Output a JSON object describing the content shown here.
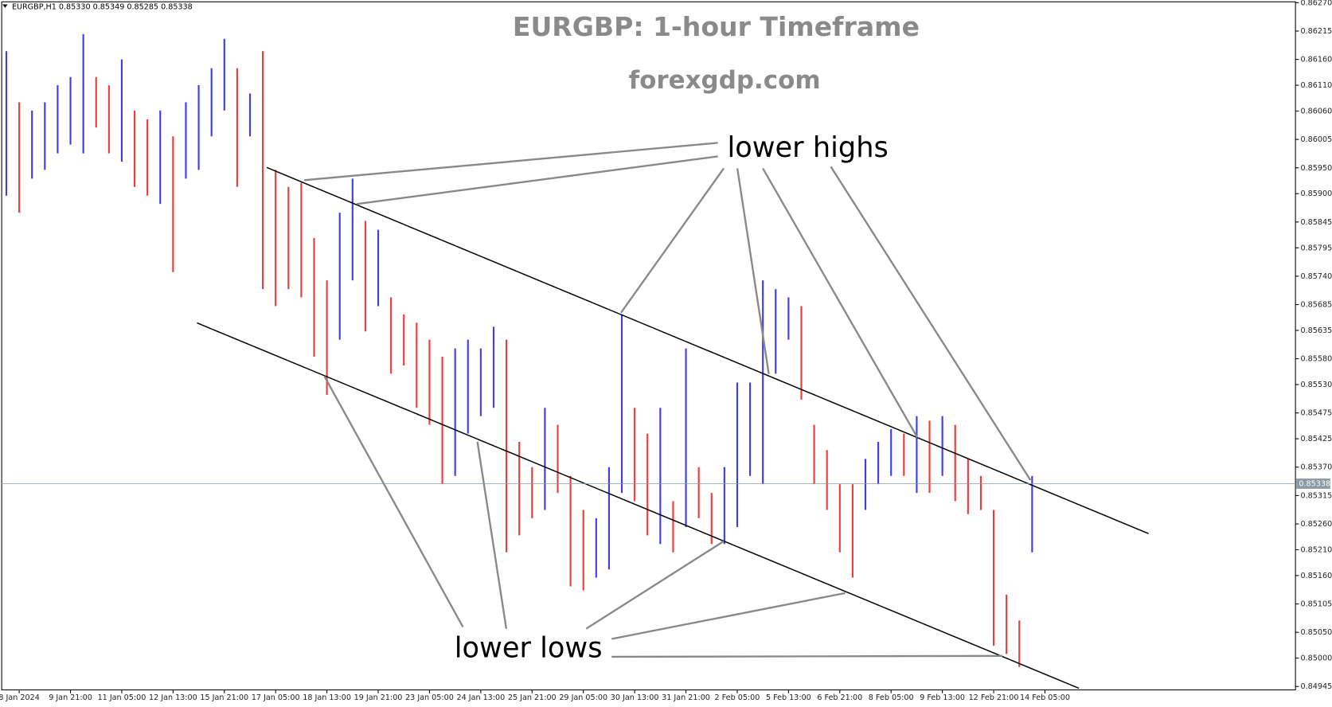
{
  "chart_data": {
    "type": "range_bar",
    "header": "EURGBP,H1  0.85330 0.85349 0.85285 0.85338",
    "title": "EURGBP: 1-hour Timeframe",
    "subtitle": "forexgdp.com",
    "annotations": [
      "lower highs",
      "lower lows"
    ],
    "up_color": "#3d3df0",
    "down_color": "#f03a3a",
    "xlim": [
      0,
      80
    ],
    "xticks": [
      {
        "value": 1,
        "label": "8 Jan 2024"
      },
      {
        "value": 5,
        "label": "9 Jan 21:00"
      },
      {
        "value": 9,
        "label": "11 Jan 05:00"
      },
      {
        "value": 13,
        "label": "12 Jan 13:00"
      },
      {
        "value": 17,
        "label": "15 Jan 21:00"
      },
      {
        "value": 21,
        "label": "17 Jan 05:00"
      },
      {
        "value": 25,
        "label": "18 Jan 13:00"
      },
      {
        "value": 29,
        "label": "19 Jan 21:00"
      },
      {
        "value": 33,
        "label": "23 Jan 05:00"
      },
      {
        "value": 37,
        "label": "24 Jan 13:00"
      },
      {
        "value": 41,
        "label": "25 Jan 21:00"
      },
      {
        "value": 45,
        "label": "29 Jan 05:00"
      },
      {
        "value": 49,
        "label": "30 Jan 13:00"
      },
      {
        "value": 53,
        "label": "31 Jan 21:00"
      },
      {
        "value": 57,
        "label": "2 Feb 05:00"
      },
      {
        "value": 61,
        "label": "5 Feb 13:00"
      },
      {
        "value": 65,
        "label": "6 Feb 21:00"
      },
      {
        "value": 69,
        "label": "8 Feb 05:00"
      },
      {
        "value": 73,
        "label": "9 Feb 13:00"
      },
      {
        "value": 77,
        "label": "12 Feb 21:00"
      },
      {
        "value": 81,
        "label": "14 Feb 05:00"
      }
    ],
    "ylim": [
      0.84945,
      0.8627
    ],
    "yticks": [
      {
        "value": 0.8627,
        "label": "0.86270"
      },
      {
        "value": 0.86215,
        "label": "0.86215"
      },
      {
        "value": 0.8616,
        "label": "0.86160"
      },
      {
        "value": 0.8611,
        "label": "0.86110"
      },
      {
        "value": 0.8606,
        "label": "0.86060"
      },
      {
        "value": 0.86005,
        "label": "0.86005"
      },
      {
        "value": 0.8595,
        "label": "0.85950"
      },
      {
        "value": 0.859,
        "label": "0.85900"
      },
      {
        "value": 0.85845,
        "label": "0.85845"
      },
      {
        "value": 0.85795,
        "label": "0.85795"
      },
      {
        "value": 0.8574,
        "label": "0.85740"
      },
      {
        "value": 0.85685,
        "label": "0.85685"
      },
      {
        "value": 0.85635,
        "label": "0.85635"
      },
      {
        "value": 0.8558,
        "label": "0.85580"
      },
      {
        "value": 0.8553,
        "label": "0.85530"
      },
      {
        "value": 0.85475,
        "label": "0.85475"
      },
      {
        "value": 0.85425,
        "label": "0.85425"
      },
      {
        "value": 0.8537,
        "label": "0.85370"
      },
      {
        "value": 0.85315,
        "label": "0.85315"
      },
      {
        "value": 0.8526,
        "label": "0.85260"
      },
      {
        "value": 0.8521,
        "label": "0.85210"
      },
      {
        "value": 0.8516,
        "label": "0.85160"
      },
      {
        "value": 0.85105,
        "label": "0.85105"
      },
      {
        "value": 0.8505,
        "label": "0.85050"
      },
      {
        "value": 0.85,
        "label": "0.85000"
      },
      {
        "value": 0.84945,
        "label": "0.84945"
      }
    ],
    "last_price": {
      "value": 0.85338,
      "label": "0.85338"
    },
    "high": [
      0.86176,
      0.86077,
      0.86061,
      0.86077,
      0.8611,
      0.86126,
      0.86209,
      0.86126,
      0.8611,
      0.8616,
      0.86061,
      0.86044,
      0.86061,
      0.86011,
      0.86077,
      0.8611,
      0.86143,
      0.862,
      0.86143,
      0.86094,
      0.86176,
      0.85946,
      0.85913,
      0.85921,
      0.85814,
      0.85732,
      0.85863,
      0.85929,
      0.85847,
      0.8583,
      0.85699,
      0.85666,
      0.8565,
      0.85617,
      0.85584,
      0.856,
      0.85617,
      0.856,
      0.85642,
      0.85617,
      0.85419,
      0.8537,
      0.85485,
      0.85452,
      0.85353,
      0.85287,
      0.85271,
      0.8537,
      0.85666,
      0.85485,
      0.85435,
      0.85485,
      0.85304,
      0.856,
      0.8537,
      0.8532,
      0.8537,
      0.85534,
      0.85534,
      0.85732,
      0.85715,
      0.85699,
      0.85682,
      0.85452,
      0.85403,
      0.85337,
      0.85337,
      0.85386,
      0.85419,
      0.85444,
      0.85435,
      0.85469,
      0.8546,
      0.85469,
      0.85452,
      0.85386,
      0.85353,
      0.85287,
      0.85123,
      0.85073,
      0.85353
    ],
    "low": [
      0.85896,
      0.85863,
      0.85929,
      0.85946,
      0.85978,
      0.85995,
      0.85978,
      0.86028,
      0.85978,
      0.85962,
      0.85913,
      0.85896,
      0.8588,
      0.85748,
      0.85929,
      0.85946,
      0.86011,
      0.86061,
      0.85913,
      0.86011,
      0.85715,
      0.85682,
      0.85715,
      0.85699,
      0.85584,
      0.8551,
      0.85617,
      0.85732,
      0.85633,
      0.85682,
      0.85551,
      0.85567,
      0.85485,
      0.85452,
      0.85337,
      0.85353,
      0.85435,
      0.85469,
      0.85485,
      0.85205,
      0.85238,
      0.85271,
      0.85287,
      0.8532,
      0.85139,
      0.85131,
      0.85156,
      0.85172,
      0.8532,
      0.85304,
      0.85238,
      0.85221,
      0.85205,
      0.85254,
      0.85271,
      0.85221,
      0.85221,
      0.85254,
      0.85353,
      0.85337,
      0.85551,
      0.85617,
      0.85501,
      0.85337,
      0.85287,
      0.85205,
      0.85156,
      0.85287,
      0.85337,
      0.85353,
      0.85353,
      0.8532,
      0.8532,
      0.85353,
      0.85304,
      0.85279,
      0.85287,
      0.85024,
      0.85008,
      0.84983,
      0.85205
    ]
  }
}
